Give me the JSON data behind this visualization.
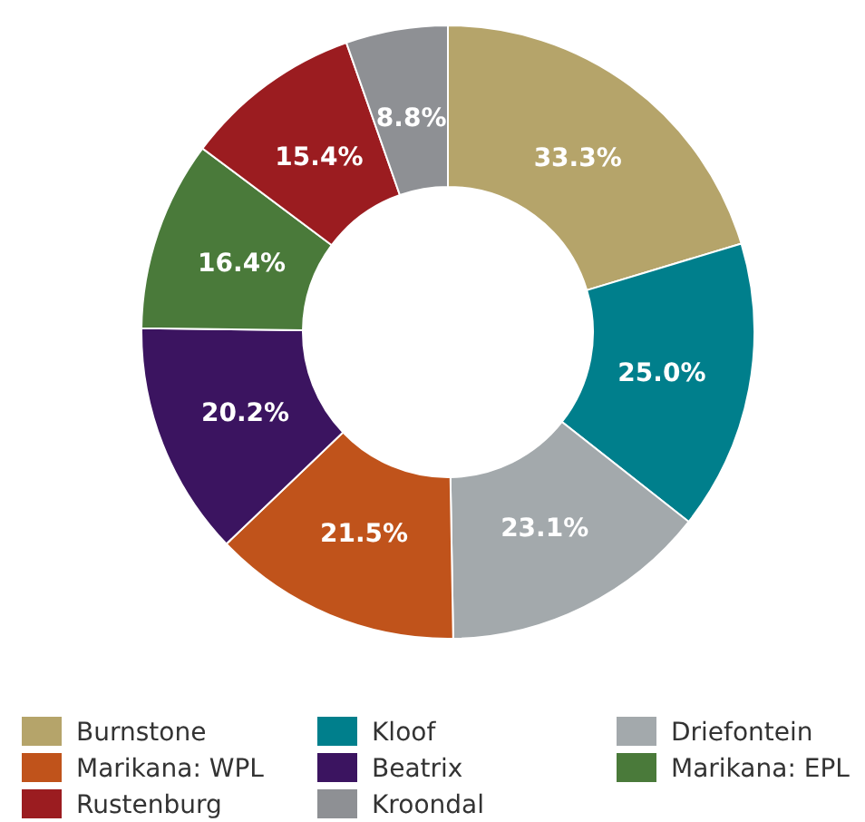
{
  "chart_data": {
    "type": "donut",
    "categories": [
      "Burnstone",
      "Kloof",
      "Driefontein",
      "Marikana: WPL",
      "Beatrix",
      "Marikana: EPL",
      "Rustenburg",
      "Kroondal"
    ],
    "values": [
      33.3,
      25.0,
      23.1,
      21.5,
      20.2,
      16.4,
      15.4,
      8.8
    ],
    "value_labels": [
      "33.3%",
      "25.0%",
      "23.1%",
      "21.5%",
      "20.2%",
      "16.4%",
      "15.4%",
      "8.8%"
    ],
    "colors": [
      "#b5a46a",
      "#007f8c",
      "#a3a9ac",
      "#c0531b",
      "#3b1460",
      "#4a7a3a",
      "#9b1c20",
      "#8e9094"
    ],
    "legend": "bottom"
  }
}
